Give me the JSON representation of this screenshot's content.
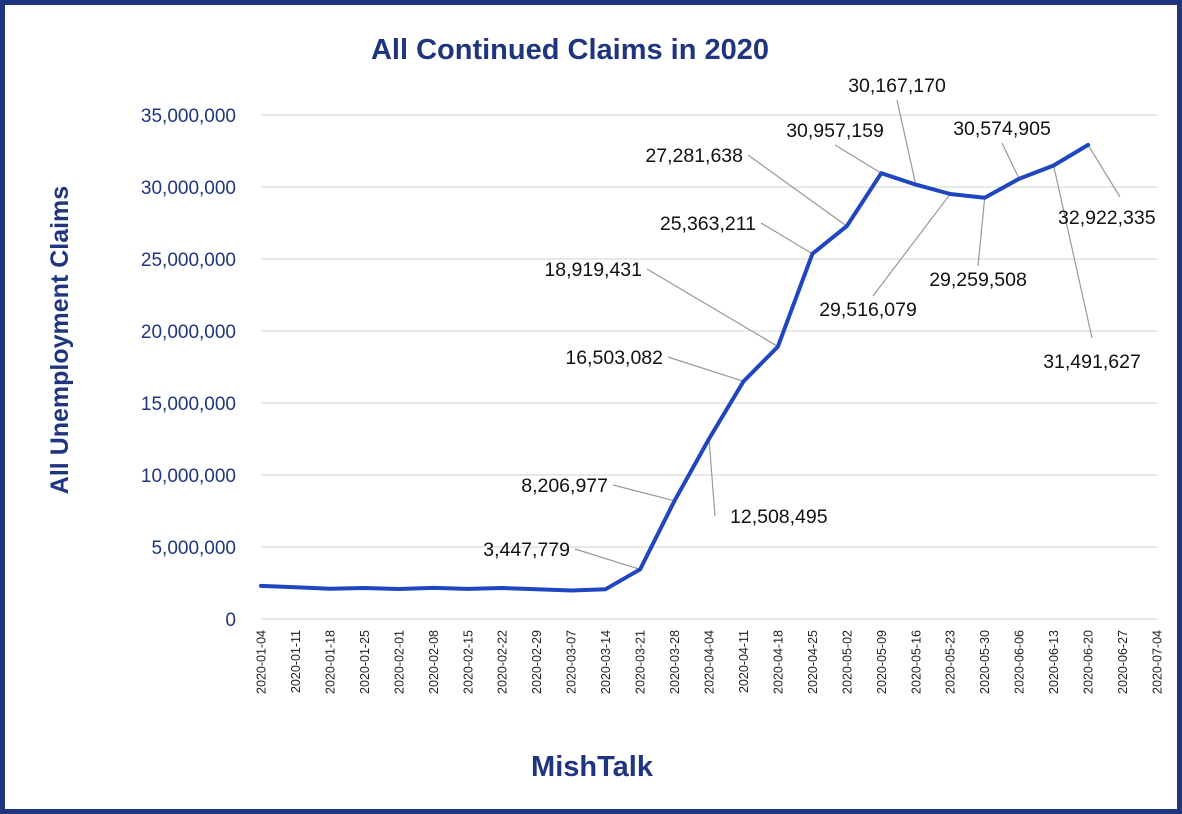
{
  "chart_data": {
    "type": "line",
    "title": "All Continued Claims in 2020",
    "ylabel": "All Unemployment  Claims",
    "xlabel": "MishTalk",
    "ylim": [
      0,
      35000000
    ],
    "y_ticks": [
      "0",
      "5,000,000",
      "10,000,000",
      "15,000,000",
      "20,000,000",
      "25,000,000",
      "30,000,000",
      "35,000,000"
    ],
    "grid": true,
    "colors": {
      "line": "#1f45c0",
      "title": "#1f3580",
      "frame": "#1f3580",
      "grid": "#d0d0d0",
      "leader": "#999999"
    },
    "x": [
      "2020-01-04",
      "2020-01-11",
      "2020-01-18",
      "2020-01-25",
      "2020-02-01",
      "2020-02-08",
      "2020-02-15",
      "2020-02-22",
      "2020-02-29",
      "2020-03-07",
      "2020-03-14",
      "2020-03-21",
      "2020-03-28",
      "2020-04-04",
      "2020-04-11",
      "2020-04-18",
      "2020-04-25",
      "2020-05-02",
      "2020-05-09",
      "2020-05-16",
      "2020-05-23",
      "2020-05-30",
      "2020-06-06",
      "2020-06-13",
      "2020-06-20",
      "2020-06-27",
      "2020-07-04"
    ],
    "series": [
      {
        "values": [
          2300000,
          2200000,
          2100000,
          2150000,
          2080000,
          2160000,
          2090000,
          2150000,
          2060000,
          1980000,
          2070000,
          3447779,
          8206977,
          12508495,
          16503082,
          18919431,
          25363211,
          27281638,
          30957159,
          30167170,
          29516079,
          29259508,
          30574905,
          31491627,
          32922335,
          null,
          null
        ]
      }
    ],
    "data_labels": [
      {
        "index": 11,
        "text": "3,447,779"
      },
      {
        "index": 12,
        "text": "8,206,977"
      },
      {
        "index": 13,
        "text": "12,508,495"
      },
      {
        "index": 14,
        "text": "16,503,082"
      },
      {
        "index": 15,
        "text": "18,919,431"
      },
      {
        "index": 16,
        "text": "25,363,211"
      },
      {
        "index": 17,
        "text": "27,281,638"
      },
      {
        "index": 18,
        "text": "30,957,159"
      },
      {
        "index": 19,
        "text": "30,167,170"
      },
      {
        "index": 20,
        "text": "29,516,079"
      },
      {
        "index": 21,
        "text": "29,259,508"
      },
      {
        "index": 22,
        "text": "30,574,905"
      },
      {
        "index": 23,
        "text": "31,491,627"
      },
      {
        "index": 24,
        "text": "32,922,335"
      }
    ]
  }
}
